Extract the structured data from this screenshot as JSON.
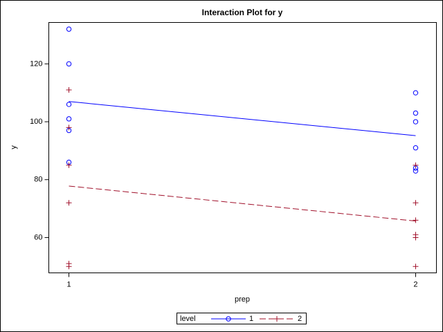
{
  "chart_data": {
    "type": "interaction",
    "title": "Interaction Plot for y",
    "x_label": "prep",
    "y_label": "y",
    "xlim": [
      0.942,
      2.06
    ],
    "xticks": [
      1,
      2
    ],
    "ylim": [
      47.8,
      134.3
    ],
    "yticks": [
      60,
      80,
      100,
      120
    ],
    "legend_title": "level",
    "legend_position": "bottom",
    "mean_x": [
      1,
      2
    ],
    "series": [
      {
        "name": "1",
        "color": "#0000ff",
        "marker": "circle",
        "dash": "solid",
        "x": [
          1,
          1,
          1,
          1,
          1,
          1,
          2,
          2,
          2,
          2,
          2,
          2
        ],
        "values": [
          132,
          120,
          106,
          101,
          97,
          86,
          110,
          103,
          100,
          91,
          84,
          83
        ],
        "means": [
          107,
          95.2
        ]
      },
      {
        "name": "2",
        "color": "#a0102a",
        "marker": "plus",
        "dash": "dashed",
        "x": [
          1,
          1,
          1,
          1,
          1,
          1,
          2,
          2,
          2,
          2,
          2,
          2
        ],
        "values": [
          111,
          98,
          85,
          72,
          51,
          50,
          85,
          72,
          66,
          61,
          60,
          50
        ],
        "means": [
          77.8,
          65.7
        ]
      }
    ]
  }
}
